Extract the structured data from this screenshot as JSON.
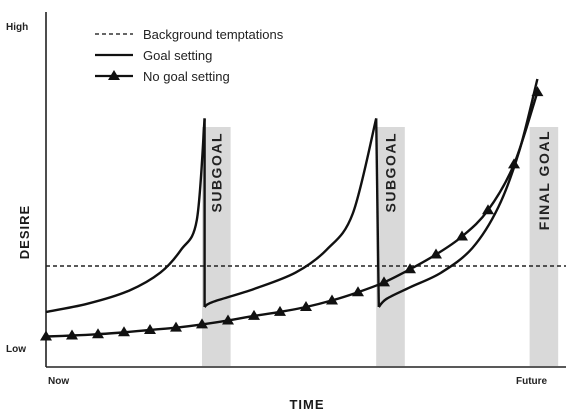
{
  "chart_data": {
    "type": "line",
    "xlabel": "TIME",
    "ylabel": "DESIRE",
    "x_tick_labels": {
      "start": "Now",
      "end": "Future"
    },
    "y_tick_labels": {
      "low": "Low",
      "high": "High"
    },
    "xlim": [
      0,
      10
    ],
    "ylim": [
      0,
      10
    ],
    "legend_position": "top-left",
    "bands": [
      {
        "label": "SUBGOAL",
        "x": [
          3.0,
          3.55
        ]
      },
      {
        "label": "SUBGOAL",
        "x": [
          6.35,
          6.9
        ]
      },
      {
        "label": "FINAL GOAL",
        "x": [
          9.3,
          9.85
        ]
      }
    ],
    "series": [
      {
        "name": "Background temptations",
        "style": "dashed",
        "color": "#222222",
        "points": [
          [
            0,
            2.5
          ],
          [
            10,
            2.5
          ]
        ]
      },
      {
        "name": "Goal setting",
        "style": "solid",
        "color": "#111111",
        "segments": [
          [
            [
              0,
              1.1
            ],
            [
              0.8,
              1.35
            ],
            [
              1.6,
              1.75
            ],
            [
              2.2,
              2.3
            ],
            [
              2.6,
              3.0
            ],
            [
              2.9,
              3.9
            ],
            [
              3.05,
              7.0
            ]
          ],
          [
            [
              3.05,
              1.25
            ],
            [
              3.2,
              1.4
            ],
            [
              4.0,
              1.8
            ],
            [
              4.8,
              2.3
            ],
            [
              5.4,
              3.0
            ],
            [
              5.9,
              4.1
            ],
            [
              6.35,
              7.0
            ]
          ],
          [
            [
              6.4,
              1.25
            ],
            [
              6.55,
              1.5
            ],
            [
              7.0,
              1.85
            ],
            [
              7.6,
              2.3
            ],
            [
              8.2,
              3.05
            ],
            [
              8.7,
              4.3
            ],
            [
              9.1,
              6.0
            ],
            [
              9.45,
              8.2
            ]
          ]
        ]
      },
      {
        "name": "No goal setting",
        "style": "solid-triangle-markers",
        "color": "#111111",
        "points": [
          [
            0,
            0.35
          ],
          [
            0.5,
            0.38
          ],
          [
            1.0,
            0.42
          ],
          [
            1.5,
            0.48
          ],
          [
            2.0,
            0.55
          ],
          [
            2.5,
            0.62
          ],
          [
            3.0,
            0.72
          ],
          [
            3.5,
            0.84
          ],
          [
            4.0,
            0.98
          ],
          [
            4.5,
            1.1
          ],
          [
            5.0,
            1.25
          ],
          [
            5.5,
            1.45
          ],
          [
            6.0,
            1.7
          ],
          [
            6.5,
            2.0
          ],
          [
            7.0,
            2.4
          ],
          [
            7.5,
            2.85
          ],
          [
            8.0,
            3.4
          ],
          [
            8.5,
            4.2
          ],
          [
            9.0,
            5.6
          ],
          [
            9.45,
            7.8
          ]
        ]
      }
    ]
  }
}
